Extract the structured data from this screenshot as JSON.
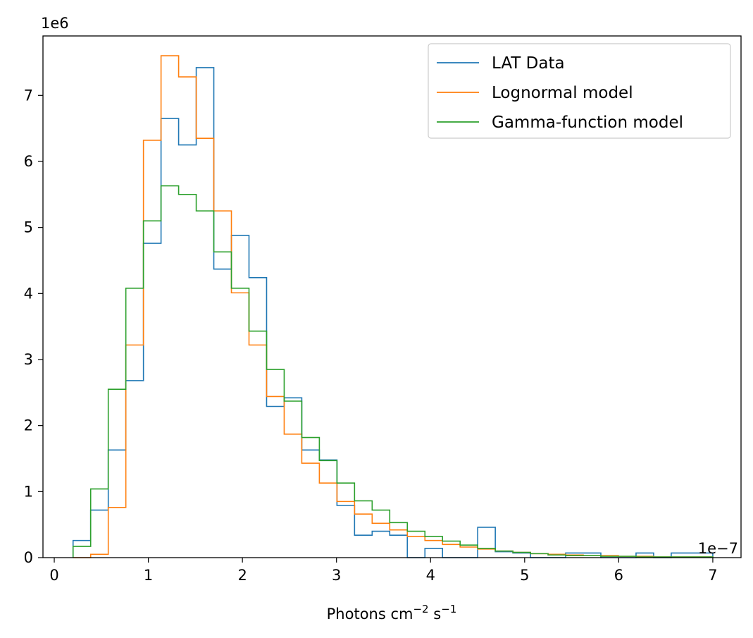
{
  "chart_data": {
    "type": "histogram-step",
    "xlabel_base": "Photons cm",
    "xlabel_exp1": "−2",
    "xlabel_mid": " s",
    "xlabel_exp2": "−1",
    "x_offset_label": "1e−7",
    "y_offset_label": "1e6",
    "xlim": [
      -0.12,
      7.3
    ],
    "ylim": [
      0,
      7.9
    ],
    "xticks": [
      0,
      1,
      2,
      3,
      4,
      5,
      6,
      7
    ],
    "xtick_labels": [
      "0",
      "1",
      "2",
      "3",
      "4",
      "5",
      "6",
      "7"
    ],
    "yticks": [
      0,
      1,
      2,
      3,
      4,
      5,
      6,
      7
    ],
    "ytick_labels": [
      "0",
      "1",
      "2",
      "3",
      "4",
      "5",
      "6",
      "7"
    ],
    "bin_edges": [
      0.2,
      0.387,
      0.574,
      0.761,
      0.948,
      1.135,
      1.322,
      1.509,
      1.696,
      1.883,
      2.07,
      2.257,
      2.444,
      2.631,
      2.818,
      3.005,
      3.192,
      3.379,
      3.566,
      3.753,
      3.94,
      4.127,
      4.314,
      4.501,
      4.688,
      4.875,
      5.062,
      5.249,
      5.436,
      5.623,
      5.81,
      5.997,
      6.184,
      6.371,
      6.558,
      6.745,
      7.0
    ],
    "legend_position": "upper-right",
    "series": [
      {
        "name": "LAT Data",
        "color": "#1f77b4",
        "values": [
          0.26,
          0.72,
          1.63,
          2.68,
          4.76,
          6.65,
          6.25,
          7.42,
          4.37,
          4.88,
          4.24,
          2.29,
          2.42,
          1.63,
          1.48,
          0.79,
          0.34,
          0.4,
          0.34,
          0.0,
          0.14,
          0.0,
          0.0,
          0.46,
          0.09,
          0.07,
          0.0,
          0.0,
          0.07,
          0.07,
          0.0,
          0.0,
          0.07,
          0.0,
          0.07,
          0.07
        ]
      },
      {
        "name": "Lognormal model",
        "color": "#ff7f0e",
        "values": [
          0.0,
          0.05,
          0.76,
          3.22,
          6.32,
          7.6,
          7.28,
          6.35,
          5.25,
          4.01,
          3.22,
          2.44,
          1.87,
          1.43,
          1.13,
          0.85,
          0.66,
          0.52,
          0.42,
          0.32,
          0.26,
          0.2,
          0.16,
          0.13,
          0.1,
          0.08,
          0.06,
          0.05,
          0.04,
          0.03,
          0.03,
          0.02,
          0.02,
          0.01,
          0.01,
          0.01
        ]
      },
      {
        "name": "Gamma-function model",
        "color": "#2ca02c",
        "values": [
          0.17,
          1.04,
          2.55,
          4.08,
          5.1,
          5.63,
          5.5,
          5.25,
          4.63,
          4.08,
          3.43,
          2.85,
          2.37,
          1.82,
          1.47,
          1.13,
          0.86,
          0.72,
          0.53,
          0.4,
          0.32,
          0.25,
          0.19,
          0.14,
          0.1,
          0.08,
          0.06,
          0.04,
          0.03,
          0.03,
          0.02,
          0.02,
          0.01,
          0.01,
          0.01,
          0.01
        ]
      }
    ]
  }
}
